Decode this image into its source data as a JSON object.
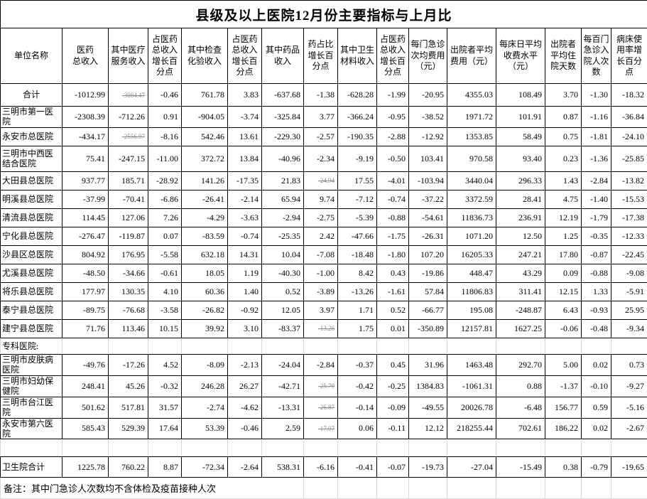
{
  "title": "县级及以上医院12月份主要指标与上月比",
  "columns": [
    "单位名称",
    "医药\n总收入",
    "其中医疗\n服务收入",
    "占医药\n总收入\n增长百\n分点",
    "其中检查\n化验收入",
    "占医药\n总收入\n增长百\n分点",
    "其中药品\n收入",
    "药占比\n增长百\n分点",
    "其中卫生\n材料收入",
    "占医药\n总收入\n增长百\n分点",
    "每门急诊\n次均费用\n（元）",
    "出院者平均\n费用（元）",
    "每床日平均\n收费水平\n（元）",
    "出院者\n平均住\n院天数",
    "每百门\n急诊入\n院人次\n数",
    "病床使\n用率增\n长百分\n点"
  ],
  "rows": [
    {
      "type": "total",
      "name": "合计",
      "values": [
        "-1012.99",
        "-3084.47",
        "-0.46",
        "761.78",
        "3.83",
        "-637.68",
        "-1.38",
        "-628.28",
        "-1.99",
        "-20.95",
        "4355.03",
        "108.49",
        "3.70",
        "-1.30",
        "-18.32"
      ],
      "small": [
        1
      ]
    },
    {
      "type": "data",
      "name": "三明市第一医院",
      "values": [
        "-2308.39",
        "-712.26",
        "0.91",
        "-904.05",
        "-3.74",
        "-325.84",
        "3.77",
        "-366.24",
        "-0.95",
        "-38.52",
        "1971.72",
        "101.91",
        "0.87",
        "-1.16",
        "-36.84"
      ],
      "small": []
    },
    {
      "type": "data",
      "name": "永安市总医院",
      "values": [
        "-434.17",
        "-2556.97",
        "-8.16",
        "542.46",
        "13.61",
        "-229.30",
        "-2.57",
        "-190.35",
        "-2.88",
        "-12.92",
        "1353.85",
        "58.49",
        "0.75",
        "-1.81",
        "-24.10"
      ],
      "small": [
        1
      ]
    },
    {
      "type": "data",
      "name": "三明市中西医结合医院",
      "values": [
        "75.41",
        "-247.15",
        "-11.00",
        "372.72",
        "13.84",
        "-40.96",
        "-2.34",
        "-9.19",
        "-0.50",
        "103.41",
        "970.58",
        "93.40",
        "0.23",
        "-1.36",
        "-25.85"
      ],
      "small": []
    },
    {
      "type": "data",
      "name": "大田县总医院",
      "values": [
        "937.77",
        "185.71",
        "-28.92",
        "141.26",
        "-17.35",
        "21.83",
        "-24.94",
        "17.55",
        "-4.01",
        "-103.94",
        "3440.04",
        "296.33",
        "1.43",
        "-2.84",
        "-13.82"
      ],
      "small": [
        6
      ]
    },
    {
      "type": "data",
      "name": "明溪县总医院",
      "values": [
        "-37.99",
        "-70.41",
        "-6.86",
        "-26.41",
        "-2.14",
        "65.94",
        "9.74",
        "-7.12",
        "-0.74",
        "-37.22",
        "3372.59",
        "28.41",
        "4.75",
        "-1.40",
        "-15.53"
      ],
      "small": []
    },
    {
      "type": "data",
      "name": "清流县总医院",
      "values": [
        "114.45",
        "127.06",
        "7.26",
        "-4.29",
        "-3.63",
        "-2.94",
        "-2.75",
        "-5.39",
        "-0.88",
        "-54.61",
        "11836.73",
        "236.91",
        "12.19",
        "-1.79",
        "-17.38"
      ],
      "small": []
    },
    {
      "type": "data",
      "name": "宁化县总医院",
      "values": [
        "-276.47",
        "-119.87",
        "0.07",
        "-83.59",
        "-0.74",
        "-25.35",
        "2.42",
        "-47.66",
        "-1.75",
        "-26.31",
        "1071.20",
        "12.50",
        "1.25",
        "-0.35",
        "-12.33"
      ],
      "small": []
    },
    {
      "type": "data",
      "name": "沙县区总医院",
      "values": [
        "804.92",
        "176.95",
        "-5.58",
        "632.18",
        "14.31",
        "10.04",
        "-7.08",
        "-18.48",
        "-1.80",
        "107.20",
        "16205.33",
        "247.21",
        "17.80",
        "-0.87",
        "-22.45"
      ],
      "small": []
    },
    {
      "type": "data",
      "name": "尤溪县总医院",
      "values": [
        "-48.50",
        "-34.66",
        "-0.61",
        "18.05",
        "1.19",
        "-40.30",
        "-1.00",
        "8.42",
        "0.43",
        "-19.86",
        "448.47",
        "43.29",
        "0.09",
        "-0.88",
        "-9.08"
      ],
      "small": []
    },
    {
      "type": "data",
      "name": "将乐县总医院",
      "values": [
        "177.97",
        "130.35",
        "4.10",
        "60.36",
        "1.40",
        "0.52",
        "-3.89",
        "-13.26",
        "-1.61",
        "57.84",
        "11806.83",
        "311.41",
        "12.15",
        "1.33",
        "-5.91"
      ],
      "small": []
    },
    {
      "type": "data",
      "name": "泰宁县总医院",
      "values": [
        "-89.75",
        "-76.68",
        "-3.58",
        "-26.82",
        "-0.92",
        "12.05",
        "3.97",
        "1.71",
        "0.52",
        "-66.77",
        "195.08",
        "-248.87",
        "6.43",
        "-0.93",
        "25.95"
      ],
      "small": []
    },
    {
      "type": "data",
      "name": "建宁县总医院",
      "values": [
        "71.76",
        "113.46",
        "10.15",
        "39.92",
        "3.10",
        "-83.37",
        "-13.26",
        "1.75",
        "0.01",
        "-350.89",
        "12157.81",
        "1627.25",
        "-0.06",
        "-0.48",
        "-9.34"
      ],
      "small": [
        6
      ]
    },
    {
      "type": "section",
      "name": "专科医院:"
    },
    {
      "type": "data",
      "name": "三明市皮肤病医院",
      "values": [
        "-49.76",
        "-17.26",
        "4.52",
        "-8.09",
        "-2.13",
        "-24.04",
        "-2.84",
        "-0.37",
        "0.45",
        "31.96",
        "1463.48",
        "292.70",
        "5.00",
        "0.02",
        "0.73"
      ],
      "small": []
    },
    {
      "type": "data",
      "name": "三明市妇幼保健院",
      "values": [
        "248.41",
        "45.26",
        "-0.32",
        "246.28",
        "26.27",
        "-42.71",
        "-25.70",
        "-0.42",
        "-0.25",
        "1384.83",
        "-1061.31",
        "0.88",
        "-1.37",
        "-0.10",
        "-9.27"
      ],
      "small": [
        6
      ]
    },
    {
      "type": "data",
      "name": "三明市台江医院",
      "values": [
        "501.62",
        "517.81",
        "31.57",
        "-2.74",
        "-4.62",
        "-13.31",
        "-26.87",
        "-0.14",
        "-0.09",
        "-49.55",
        "20026.78",
        "-6.48",
        "156.77",
        "0.59",
        "-5.16"
      ],
      "small": [
        6
      ]
    },
    {
      "type": "data",
      "name": "永安市第六医院",
      "values": [
        "585.43",
        "529.39",
        "17.64",
        "53.39",
        "-0.46",
        "2.59",
        "-17.07",
        "0.06",
        "-0.11",
        "12.12",
        "218255.44",
        "702.61",
        "186.22",
        "0.02",
        "-2.67"
      ],
      "small": [
        6
      ]
    },
    {
      "type": "blank",
      "name": ""
    },
    {
      "type": "grand",
      "name": "卫生院合计",
      "values": [
        "1225.78",
        "760.22",
        "8.87",
        "-72.34",
        "-2.64",
        "538.31",
        "-6.16",
        "-0.41",
        "-0.07",
        "-19.73",
        "-27.04",
        "-15.49",
        "0.38",
        "-0.79",
        "-19.65"
      ],
      "small": []
    },
    {
      "type": "note",
      "name": "备注：其中门急诊人次数均不含体检及疫苗接种人次"
    }
  ],
  "colors": {
    "border": "#000000",
    "gridline": "#d9d9d9",
    "shrunk_text": "#8a8a8a",
    "text": "#000000",
    "background": "#ffffff"
  }
}
